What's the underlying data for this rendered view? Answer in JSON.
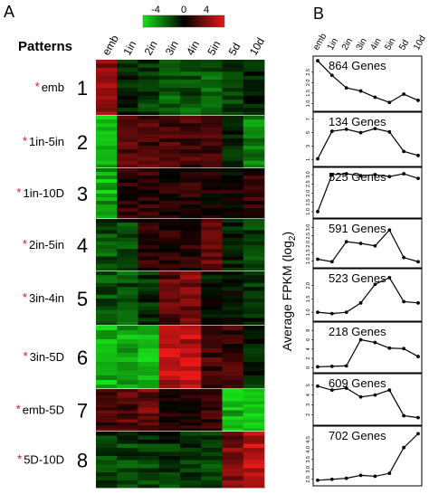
{
  "chart_data": {
    "type": "heatmap",
    "panels": [
      {
        "letter": "A",
        "header": "Patterns",
        "columns": [
          "emb",
          "1in",
          "2in",
          "3in",
          "4in",
          "5in",
          "5d",
          "10d"
        ],
        "legend": {
          "ticks": [
            "-4",
            "0",
            "4"
          ],
          "range": [
            -4,
            4
          ],
          "colors": {
            "low": "#18e018",
            "mid": "#000000",
            "high": "#e81818"
          }
        },
        "star_color": "#e0141b",
        "patterns": [
          {
            "number": "1",
            "name": "emb",
            "starred": true,
            "values": [
              2.2,
              -0.5,
              -1.0,
              -1.4,
              -1.6,
              -1.6,
              -1.0,
              -0.7
            ]
          },
          {
            "number": "2",
            "name": "1in-5in",
            "starred": true,
            "values": [
              -3.5,
              1.6,
              1.4,
              1.2,
              1.2,
              1.1,
              -0.6,
              -2.6
            ]
          },
          {
            "number": "3",
            "name": "1in-10D",
            "starred": true,
            "values": [
              -3.2,
              0.7,
              0.8,
              0.6,
              0.6,
              0.4,
              0.2,
              0.8
            ]
          },
          {
            "number": "4",
            "name": "2in-5in",
            "starred": true,
            "values": [
              -1.5,
              -1.2,
              0.8,
              0.6,
              0.5,
              1.8,
              -0.5,
              -1.4
            ]
          },
          {
            "number": "5",
            "name": "3in-4in",
            "starred": true,
            "values": [
              -1.6,
              -1.5,
              -0.8,
              1.6,
              2.3,
              -0.4,
              -0.3,
              -0.7
            ]
          },
          {
            "number": "6",
            "name": "3in-5D",
            "starred": true,
            "values": [
              -3.4,
              -3.4,
              -3.3,
              3.6,
              3.6,
              1.3,
              1.1,
              -0.6
            ]
          },
          {
            "number": "7",
            "name": "emb-5D",
            "starred": true,
            "values": [
              1.2,
              1.3,
              1.8,
              0.4,
              0.4,
              0.9,
              -3.5,
              -3.5
            ]
          },
          {
            "number": "8",
            "name": "5D-10D",
            "starred": true,
            "values": [
              -1.2,
              -1.2,
              -1.1,
              -0.9,
              -1.0,
              -1.3,
              2.2,
              3.5
            ]
          }
        ]
      },
      {
        "letter": "B",
        "type": "line",
        "x": [
          "emb",
          "1in",
          "2in",
          "3in",
          "4in",
          "5in",
          "5d",
          "10d"
        ],
        "ylabel": "Average FPKM (log",
        "ylabel_sub": "2",
        "ylabel_end": ")",
        "subplots": [
          {
            "genes": "864 Genes",
            "yticks": [
              "1.0",
              "1.5",
              "2.0",
              "2.5"
            ],
            "ylim": [
              0.8,
              3.1
            ],
            "values": [
              3.05,
              2.35,
              1.75,
              1.6,
              1.3,
              1.05,
              1.45,
              1.15
            ]
          },
          {
            "genes": "134 Genes",
            "yticks": [
              "1",
              "3",
              "5",
              "7"
            ],
            "ylim": [
              0.5,
              7.5
            ],
            "values": [
              1.1,
              5.2,
              5.5,
              5.0,
              5.6,
              5.1,
              2.2,
              1.6
            ]
          },
          {
            "genes": "525 Genes",
            "yticks": [
              "1.0",
              "1.5",
              "2.0",
              "2.5",
              "3.0"
            ],
            "ylim": [
              0.85,
              3.2
            ],
            "values": [
              1.0,
              3.0,
              3.05,
              2.95,
              3.0,
              2.9,
              3.05,
              2.8
            ]
          },
          {
            "genes": "591 Genes",
            "yticks": [
              "1.0",
              "1.5",
              "2.0",
              "2.5",
              "3.0"
            ],
            "ylim": [
              0.8,
              3.3
            ],
            "values": [
              1.1,
              0.95,
              2.15,
              2.05,
              1.9,
              2.85,
              1.2,
              0.95
            ]
          },
          {
            "genes": "523 Genes",
            "yticks": [
              "1.0",
              "1.5",
              "2.0"
            ],
            "ylim": [
              0.8,
              2.5
            ],
            "values": [
              1.0,
              0.95,
              1.0,
              1.35,
              2.05,
              2.3,
              1.4,
              1.35
            ]
          },
          {
            "genes": "218 Genes",
            "yticks": [
              "0",
              "2",
              "4",
              "6",
              "8"
            ],
            "ylim": [
              -0.3,
              9
            ],
            "values": [
              0.2,
              0.3,
              0.4,
              6.0,
              5.4,
              4.2,
              4.1,
              2.4
            ]
          },
          {
            "genes": "609 Genes",
            "yticks": [
              "2",
              "3",
              "4",
              "5"
            ],
            "ylim": [
              1.3,
              5.8
            ],
            "values": [
              4.9,
              4.5,
              4.7,
              3.8,
              4.0,
              4.5,
              1.9,
              1.7
            ]
          },
          {
            "genes": "702 Genes",
            "yticks": [
              "2.5",
              "3.0",
              "3.5",
              "4.0",
              "4.5"
            ],
            "ylim": [
              2.35,
              5.0
            ],
            "values": [
              2.45,
              2.5,
              2.55,
              2.7,
              2.65,
              2.8,
              4.1,
              4.8
            ]
          }
        ]
      }
    ]
  }
}
